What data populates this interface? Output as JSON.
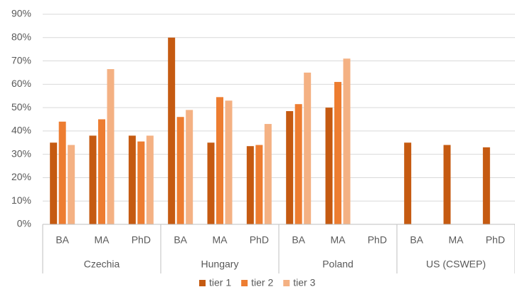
{
  "chart_data": {
    "type": "bar",
    "groups": [
      "Czechia",
      "Hungary",
      "Poland",
      "US (CSWEP)"
    ],
    "categories": [
      "BA",
      "MA",
      "PhD",
      "BA",
      "MA",
      "PhD",
      "BA",
      "MA",
      "PhD",
      "BA",
      "MA",
      "PhD"
    ],
    "series": [
      {
        "name": "tier 1",
        "color": "#c55a11",
        "values": [
          35,
          38,
          38,
          80,
          35,
          33.5,
          48.5,
          50,
          null,
          35,
          34,
          33
        ]
      },
      {
        "name": "tier 2",
        "color": "#ed7d31",
        "values": [
          44,
          45,
          35.5,
          46,
          54.5,
          34,
          51.5,
          61,
          null,
          null,
          null,
          null
        ]
      },
      {
        "name": "tier 3",
        "color": "#f4b183",
        "values": [
          34,
          66.5,
          38,
          49,
          53,
          43,
          65,
          71,
          null,
          null,
          null,
          null
        ]
      }
    ],
    "ylim": [
      0,
      90
    ],
    "yticks": [
      {
        "value": 0,
        "label": "0%"
      },
      {
        "value": 10,
        "label": "10%"
      },
      {
        "value": 20,
        "label": "20%"
      },
      {
        "value": 30,
        "label": "30%"
      },
      {
        "value": 40,
        "label": "40%"
      },
      {
        "value": 50,
        "label": "50%"
      },
      {
        "value": 60,
        "label": "60%"
      },
      {
        "value": 70,
        "label": "70%"
      },
      {
        "value": 80,
        "label": "80%"
      },
      {
        "value": 90,
        "label": "90%"
      }
    ],
    "grid": true,
    "legend": "bottom"
  }
}
